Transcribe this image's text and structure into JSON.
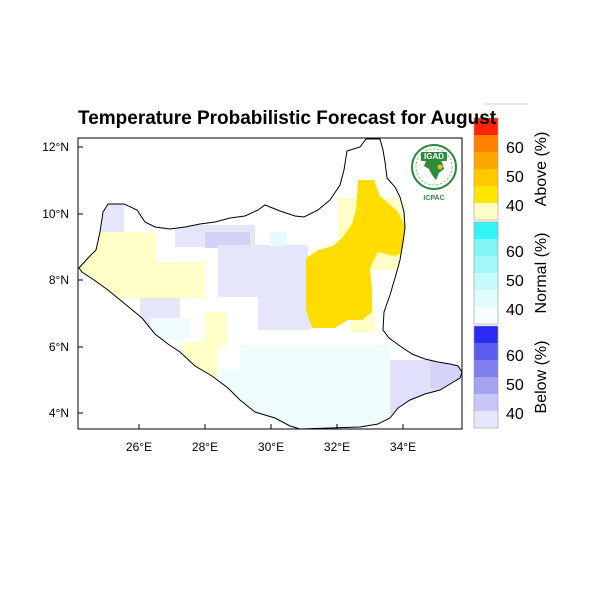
{
  "title": "Temperature Probabilistic Forecast for August",
  "map": {
    "x_ticks": [
      "26°E",
      "28°E",
      "30°E",
      "32°E",
      "34°E"
    ],
    "y_ticks": [
      "12°N",
      "10°N",
      "8°N",
      "6°N",
      "4°N"
    ],
    "lon_range": [
      24.1,
      35.8
    ],
    "lat_range": [
      3.5,
      12.3
    ],
    "background": "white",
    "boundary": "South Sudan outline",
    "forecast_regions": [
      {
        "category": "Above",
        "probability": "50-60",
        "color": "#ffdd00",
        "area": "north-eastern South Sudan, approx. 31°E–33.8°E, 6.7°N–11°N"
      },
      {
        "category": "Above",
        "probability": "35-40",
        "color": "#ffffc8",
        "area": "western, central and north-eastern patches"
      },
      {
        "category": "Below",
        "probability": "35-40",
        "color": "#e6e6fb",
        "area": "northern Bahr el Ghazal, central band and south-east corner"
      },
      {
        "category": "Normal",
        "probability": "35-40",
        "color": "#eefcfc",
        "area": "southern Equatoria belt and south-west patches"
      }
    ]
  },
  "logo": {
    "name": "IGAD",
    "subtitle": "ICPAC"
  },
  "legend": {
    "above": {
      "title": "Above (%)",
      "labels": [
        "60",
        "50",
        "40"
      ],
      "colors": [
        "#ff2400",
        "#ff8000",
        "#ffa500",
        "#ffc800",
        "#ffe600",
        "#ffffc8"
      ]
    },
    "normal": {
      "title": "Normal (%)",
      "labels": [
        "60",
        "50",
        "40"
      ],
      "colors": [
        "#33f5f5",
        "#7ff5f5",
        "#a3f7f7",
        "#c7fafa",
        "#e0fcfc",
        "#f5ffff"
      ]
    },
    "below": {
      "title": "Below (%)",
      "labels": [
        "60",
        "50",
        "40"
      ],
      "colors": [
        "#2b2bf5",
        "#5c5cf2",
        "#8080ef",
        "#a3a3f2",
        "#c8c8f8",
        "#e6e6fb"
      ]
    }
  }
}
